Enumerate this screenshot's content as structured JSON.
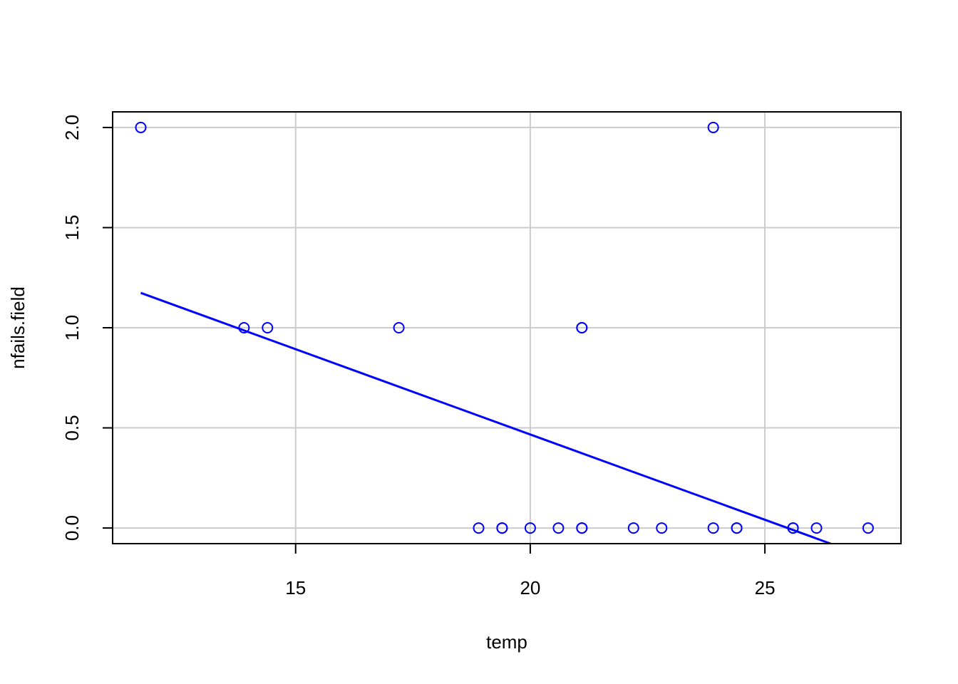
{
  "chart_data": {
    "type": "scatter",
    "title": "",
    "xlabel": "temp",
    "ylabel": "nfails.field",
    "xlim": [
      11.1,
      27.9
    ],
    "ylim": [
      -0.078,
      2.078
    ],
    "x_ticks": [
      15,
      20,
      25
    ],
    "y_ticks": [
      0.0,
      0.5,
      1.0,
      1.5,
      2.0
    ],
    "x_tick_labels": [
      "15",
      "20",
      "25"
    ],
    "y_tick_labels": [
      "0.0",
      "0.5",
      "1.0",
      "1.5",
      "2.0"
    ],
    "grid": true,
    "legend": "none",
    "colors": {
      "points": "#0000ff",
      "line": "#0000ff",
      "grid": "#cccccc",
      "axis": "#000000"
    },
    "points": [
      {
        "x": 11.7,
        "y": 2
      },
      {
        "x": 13.9,
        "y": 1
      },
      {
        "x": 14.4,
        "y": 1
      },
      {
        "x": 17.2,
        "y": 1
      },
      {
        "x": 18.9,
        "y": 0
      },
      {
        "x": 19.4,
        "y": 0
      },
      {
        "x": 19.4,
        "y": 0
      },
      {
        "x": 20.0,
        "y": 0
      },
      {
        "x": 20.6,
        "y": 0
      },
      {
        "x": 21.1,
        "y": 1
      },
      {
        "x": 21.1,
        "y": 1
      },
      {
        "x": 21.1,
        "y": 0
      },
      {
        "x": 21.1,
        "y": 0
      },
      {
        "x": 22.2,
        "y": 0
      },
      {
        "x": 22.8,
        "y": 0
      },
      {
        "x": 23.9,
        "y": 2
      },
      {
        "x": 23.9,
        "y": 0
      },
      {
        "x": 24.4,
        "y": 0
      },
      {
        "x": 24.4,
        "y": 0
      },
      {
        "x": 25.6,
        "y": 0
      },
      {
        "x": 25.6,
        "y": 0
      },
      {
        "x": 26.1,
        "y": 0
      },
      {
        "x": 27.2,
        "y": 0
      }
    ],
    "fit_line": {
      "x": [
        11.7,
        26.4
      ],
      "y": [
        1.174,
        -0.078
      ]
    }
  }
}
